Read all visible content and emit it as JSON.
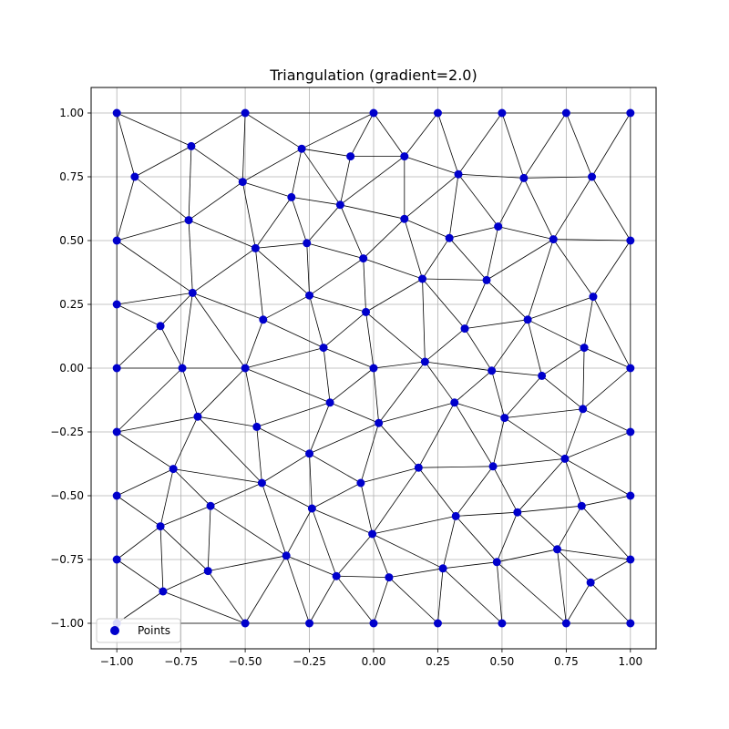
{
  "chart_data": {
    "type": "scatter",
    "title": "Triangulation (gradient=2.0)",
    "xlabel": "",
    "ylabel": "",
    "xlim": [
      -1.1,
      1.1
    ],
    "ylim": [
      -1.1,
      1.1
    ],
    "xticks": [
      -1.0,
      -0.75,
      -0.5,
      -0.25,
      0.0,
      0.25,
      0.5,
      0.75,
      1.0
    ],
    "yticks": [
      -1.0,
      -0.75,
      -0.5,
      -0.25,
      0.0,
      0.25,
      0.5,
      0.75,
      1.0
    ],
    "xtick_labels": [
      "−1.00",
      "−0.75",
      "−0.50",
      "−0.25",
      "0.00",
      "0.25",
      "0.50",
      "0.75",
      "1.00"
    ],
    "ytick_labels": [
      "−1.00",
      "−0.75",
      "−0.50",
      "−0.25",
      "0.00",
      "0.25",
      "0.50",
      "0.75",
      "1.00"
    ],
    "grid": true,
    "legend": {
      "position": "lower-left",
      "entries": [
        "Points"
      ]
    },
    "colors": {
      "points": "#0000cc",
      "edges": "#000000",
      "grid": "#b0b0b0"
    },
    "series": [
      {
        "name": "Points",
        "points": [
          [
            -1.0,
            1.0
          ],
          [
            -0.5,
            1.0
          ],
          [
            0.0,
            1.0
          ],
          [
            0.25,
            1.0
          ],
          [
            0.5,
            1.0
          ],
          [
            0.75,
            1.0
          ],
          [
            1.0,
            1.0
          ],
          [
            -0.71,
            0.87
          ],
          [
            -0.28,
            0.86
          ],
          [
            -0.09,
            0.83
          ],
          [
            0.12,
            0.83
          ],
          [
            -0.93,
            0.75
          ],
          [
            -0.51,
            0.73
          ],
          [
            0.33,
            0.76
          ],
          [
            0.585,
            0.745
          ],
          [
            0.85,
            0.75
          ],
          [
            -0.32,
            0.67
          ],
          [
            -0.13,
            0.64
          ],
          [
            -0.72,
            0.58
          ],
          [
            0.12,
            0.585
          ],
          [
            0.485,
            0.555
          ],
          [
            -1.0,
            0.5
          ],
          [
            -0.46,
            0.47
          ],
          [
            -0.26,
            0.49
          ],
          [
            0.295,
            0.51
          ],
          [
            0.7,
            0.505
          ],
          [
            1.0,
            0.5
          ],
          [
            -0.04,
            0.43
          ],
          [
            0.19,
            0.35
          ],
          [
            0.44,
            0.345
          ],
          [
            -1.0,
            0.25
          ],
          [
            -0.705,
            0.295
          ],
          [
            -0.25,
            0.285
          ],
          [
            0.855,
            0.28
          ],
          [
            -0.83,
            0.165
          ],
          [
            -0.43,
            0.19
          ],
          [
            -0.03,
            0.22
          ],
          [
            0.355,
            0.155
          ],
          [
            0.6,
            0.19
          ],
          [
            -0.195,
            0.08
          ],
          [
            0.82,
            0.08
          ],
          [
            -1.0,
            0.0
          ],
          [
            -0.745,
            0.0
          ],
          [
            -0.5,
            0.0
          ],
          [
            0.0,
            0.0
          ],
          [
            0.2,
            0.025
          ],
          [
            0.46,
            -0.01
          ],
          [
            0.655,
            -0.03
          ],
          [
            1.0,
            0.0
          ],
          [
            -0.17,
            -0.135
          ],
          [
            0.315,
            -0.135
          ],
          [
            0.815,
            -0.16
          ],
          [
            -0.685,
            -0.19
          ],
          [
            0.02,
            -0.215
          ],
          [
            0.51,
            -0.195
          ],
          [
            -1.0,
            -0.25
          ],
          [
            -0.455,
            -0.23
          ],
          [
            1.0,
            -0.25
          ],
          [
            -0.25,
            -0.335
          ],
          [
            0.745,
            -0.355
          ],
          [
            -0.78,
            -0.395
          ],
          [
            0.175,
            -0.39
          ],
          [
            0.465,
            -0.385
          ],
          [
            -0.435,
            -0.45
          ],
          [
            -0.05,
            -0.45
          ],
          [
            -1.0,
            -0.5
          ],
          [
            1.0,
            -0.5
          ],
          [
            -0.635,
            -0.54
          ],
          [
            -0.24,
            -0.55
          ],
          [
            0.81,
            -0.54
          ],
          [
            0.56,
            -0.565
          ],
          [
            0.32,
            -0.58
          ],
          [
            -0.83,
            -0.62
          ],
          [
            -0.005,
            -0.65
          ],
          [
            -1.0,
            -0.75
          ],
          [
            -0.34,
            -0.735
          ],
          [
            0.715,
            -0.71
          ],
          [
            1.0,
            -0.75
          ],
          [
            0.48,
            -0.76
          ],
          [
            -0.645,
            -0.795
          ],
          [
            0.27,
            -0.785
          ],
          [
            -0.145,
            -0.815
          ],
          [
            0.06,
            -0.82
          ],
          [
            0.845,
            -0.84
          ],
          [
            -0.82,
            -0.875
          ],
          [
            -1.0,
            -1.0
          ],
          [
            -0.5,
            -1.0
          ],
          [
            -0.25,
            -1.0
          ],
          [
            0.0,
            -1.0
          ],
          [
            0.25,
            -1.0
          ],
          [
            0.5,
            -1.0
          ],
          [
            0.75,
            -1.0
          ],
          [
            1.0,
            -1.0
          ]
        ]
      }
    ]
  }
}
